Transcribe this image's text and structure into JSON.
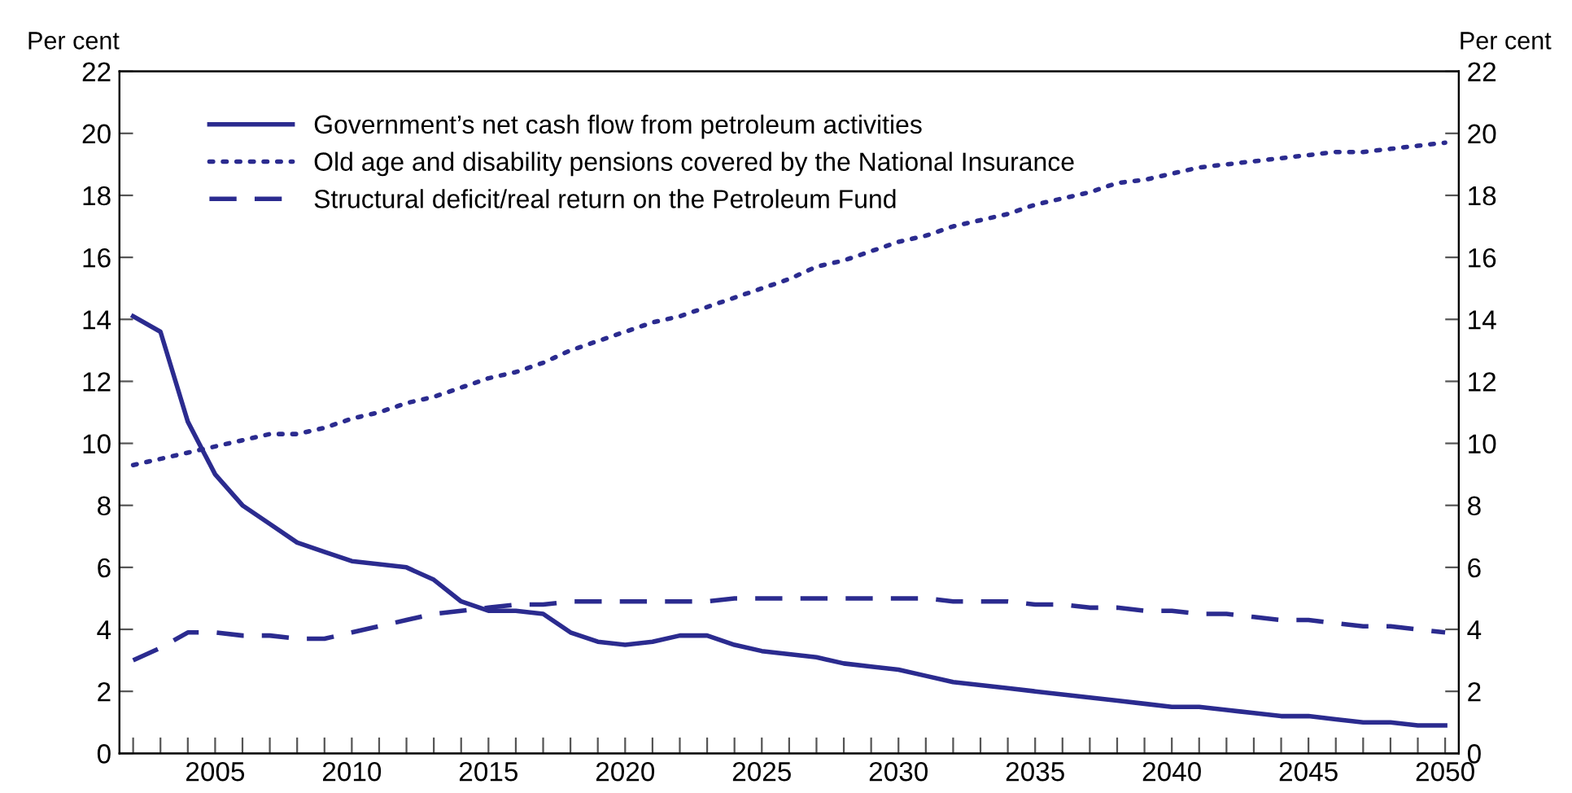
{
  "chart_data": {
    "type": "line",
    "ylabel": "Per cent",
    "y2label": "Per cent",
    "x": [
      2002,
      2003,
      2004,
      2005,
      2006,
      2007,
      2008,
      2009,
      2010,
      2011,
      2012,
      2013,
      2014,
      2015,
      2016,
      2017,
      2018,
      2019,
      2020,
      2021,
      2022,
      2023,
      2024,
      2025,
      2026,
      2027,
      2028,
      2029,
      2030,
      2031,
      2032,
      2033,
      2034,
      2035,
      2036,
      2037,
      2038,
      2039,
      2040,
      2041,
      2042,
      2043,
      2044,
      2045,
      2046,
      2047,
      2048,
      2049,
      2050
    ],
    "series": [
      {
        "name": "Government’s net cash flow from petroleum activities",
        "color": "#2b2b8f",
        "line_style": "solid",
        "values": [
          14.1,
          13.6,
          10.7,
          9.0,
          8.0,
          7.4,
          6.8,
          6.5,
          6.2,
          6.1,
          6.0,
          5.6,
          4.9,
          4.6,
          4.6,
          4.5,
          3.9,
          3.6,
          3.5,
          3.6,
          3.8,
          3.8,
          3.5,
          3.3,
          3.2,
          3.1,
          2.9,
          2.8,
          2.7,
          2.5,
          2.3,
          2.2,
          2.1,
          2.0,
          1.9,
          1.8,
          1.7,
          1.6,
          1.5,
          1.5,
          1.4,
          1.3,
          1.2,
          1.2,
          1.1,
          1.0,
          1.0,
          0.9,
          0.9
        ]
      },
      {
        "name": "Old age and disability pensions covered by the National Insurance",
        "color": "#2b2b8f",
        "line_style": "dotted",
        "values": [
          9.3,
          9.5,
          9.7,
          9.9,
          10.1,
          10.3,
          10.3,
          10.5,
          10.8,
          11.0,
          11.3,
          11.5,
          11.8,
          12.1,
          12.3,
          12.6,
          13.0,
          13.3,
          13.6,
          13.9,
          14.1,
          14.4,
          14.7,
          15.0,
          15.3,
          15.7,
          15.9,
          16.2,
          16.5,
          16.7,
          17.0,
          17.2,
          17.4,
          17.7,
          17.9,
          18.1,
          18.4,
          18.5,
          18.7,
          18.9,
          19.0,
          19.1,
          19.2,
          19.3,
          19.4,
          19.4,
          19.5,
          19.6,
          19.7
        ]
      },
      {
        "name": "Structural deficit/real return on the Petroleum Fund",
        "color": "#2b2b8f",
        "line_style": "dashed",
        "values": [
          3.0,
          3.4,
          3.9,
          3.9,
          3.8,
          3.8,
          3.7,
          3.7,
          3.9,
          4.1,
          4.3,
          4.5,
          4.6,
          4.7,
          4.8,
          4.8,
          4.9,
          4.9,
          4.9,
          4.9,
          4.9,
          4.9,
          5.0,
          5.0,
          5.0,
          5.0,
          5.0,
          5.0,
          5.0,
          5.0,
          4.9,
          4.9,
          4.9,
          4.8,
          4.8,
          4.7,
          4.7,
          4.6,
          4.6,
          4.5,
          4.5,
          4.4,
          4.3,
          4.3,
          4.2,
          4.1,
          4.1,
          4.0,
          3.9
        ]
      }
    ],
    "xlim": [
      2001.5,
      2050.5
    ],
    "xticks": [
      {
        "value": 2002,
        "label": null
      },
      {
        "value": 2003,
        "label": null
      },
      {
        "value": 2004,
        "label": null
      },
      2005,
      {
        "value": 2006,
        "label": null
      },
      {
        "value": 2007,
        "label": null
      },
      {
        "value": 2008,
        "label": null
      },
      {
        "value": 2009,
        "label": null
      },
      2010,
      {
        "value": 2011,
        "label": null
      },
      {
        "value": 2012,
        "label": null
      },
      {
        "value": 2013,
        "label": null
      },
      {
        "value": 2014,
        "label": null
      },
      2015,
      {
        "value": 2016,
        "label": null
      },
      {
        "value": 2017,
        "label": null
      },
      {
        "value": 2018,
        "label": null
      },
      {
        "value": 2019,
        "label": null
      },
      2020,
      {
        "value": 2021,
        "label": null
      },
      {
        "value": 2022,
        "label": null
      },
      {
        "value": 2023,
        "label": null
      },
      {
        "value": 2024,
        "label": null
      },
      2025,
      {
        "value": 2026,
        "label": null
      },
      {
        "value": 2027,
        "label": null
      },
      {
        "value": 2028,
        "label": null
      },
      {
        "value": 2029,
        "label": null
      },
      2030,
      {
        "value": 2031,
        "label": null
      },
      {
        "value": 2032,
        "label": null
      },
      {
        "value": 2033,
        "label": null
      },
      {
        "value": 2034,
        "label": null
      },
      2035,
      {
        "value": 2036,
        "label": null
      },
      {
        "value": 2037,
        "label": null
      },
      {
        "value": 2038,
        "label": null
      },
      {
        "value": 2039,
        "label": null
      },
      2040,
      {
        "value": 2041,
        "label": null
      },
      {
        "value": 2042,
        "label": null
      },
      {
        "value": 2043,
        "label": null
      },
      {
        "value": 2044,
        "label": null
      },
      2045,
      {
        "value": 2046,
        "label": null
      },
      {
        "value": 2047,
        "label": null
      },
      {
        "value": 2048,
        "label": null
      },
      {
        "value": 2049,
        "label": null
      },
      2050
    ],
    "ylim": [
      0,
      22
    ],
    "yticks": [
      0,
      2,
      4,
      6,
      8,
      10,
      12,
      14,
      16,
      18,
      20,
      22
    ],
    "y2lim": [
      0,
      22
    ],
    "y2ticks": [
      0,
      2,
      4,
      6,
      8,
      10,
      12,
      14,
      16,
      18,
      20,
      22
    ],
    "grid": false,
    "legend": "top left"
  }
}
